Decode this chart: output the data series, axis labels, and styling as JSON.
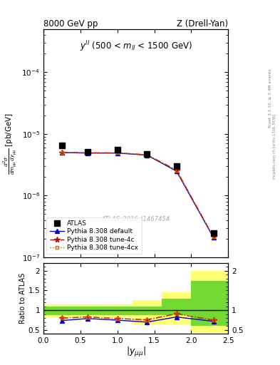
{
  "title_left": "8000 GeV pp",
  "title_right": "Z (Drell-Yan)",
  "annotation": "$y^{ll}$ (500 < $m_{ll}$ < 1500 GeV)",
  "watermark": "ATLAS_2016_I1467454",
  "right_label1": "Rivet 3.1.10, ≥ 3.4M events",
  "right_label2": "mcplots.cern.ch [arXiv:1306.3436]",
  "xlabel": "$|y_{\\mu\\mu}|$",
  "ylabel_main": "$\\frac{d^2\\sigma}{dm_{\\mu\\mu} dy_{\\mu\\mu}}$ [pb/GeV]",
  "ylabel_ratio": "Ratio to ATLAS",
  "x_data": [
    0.25,
    0.6,
    1.0,
    1.4,
    1.8,
    2.3
  ],
  "atlas_y": [
    6.5e-06,
    5.2e-06,
    5.5e-06,
    4.8e-06,
    3e-06,
    2.5e-07
  ],
  "pythia_default_y": [
    5e-06,
    4.9e-06,
    4.9e-06,
    4.55e-06,
    2.5e-06,
    2.1e-07
  ],
  "pythia_4c_y": [
    5.05e-06,
    4.95e-06,
    4.95e-06,
    4.6e-06,
    2.6e-06,
    2.15e-07
  ],
  "pythia_4cx_y": [
    5.05e-06,
    4.95e-06,
    4.95e-06,
    4.6e-06,
    2.6e-06,
    2.15e-07
  ],
  "ratio_default": [
    0.74,
    0.79,
    0.75,
    0.7,
    0.83,
    0.72
  ],
  "ratio_4c": [
    0.8,
    0.83,
    0.79,
    0.76,
    0.91,
    0.75
  ],
  "ratio_4cx": [
    0.8,
    0.83,
    0.79,
    0.75,
    0.91,
    0.75
  ],
  "band_x_edges": [
    0.0,
    0.4,
    0.8,
    1.2,
    1.6,
    2.0,
    2.5
  ],
  "band_green_lo": [
    0.875,
    0.875,
    0.875,
    0.875,
    0.875,
    0.6
  ],
  "band_green_hi": [
    1.1,
    1.1,
    1.1,
    1.1,
    1.3,
    1.75
  ],
  "band_yellow_lo": [
    0.82,
    0.82,
    0.82,
    0.65,
    0.65,
    0.42
  ],
  "band_yellow_hi": [
    1.15,
    1.15,
    1.15,
    1.25,
    1.45,
    2.0
  ],
  "color_atlas": "#000000",
  "color_default": "#0000cc",
  "color_4c": "#cc0000",
  "color_4cx": "#cc6600",
  "color_green": "#00bb00",
  "color_yellow": "#ffff00",
  "color_green_alpha": 0.55,
  "color_yellow_alpha": 0.55,
  "ylim_main": [
    1e-07,
    0.0005
  ],
  "ylim_ratio": [
    0.4,
    2.2
  ],
  "xlim": [
    0.0,
    2.5
  ],
  "ratio_yticks": [
    0.5,
    1.0,
    1.5,
    2.0
  ],
  "ratio_ytick_labels": [
    "0.5",
    "1",
    "1.5",
    "2"
  ]
}
